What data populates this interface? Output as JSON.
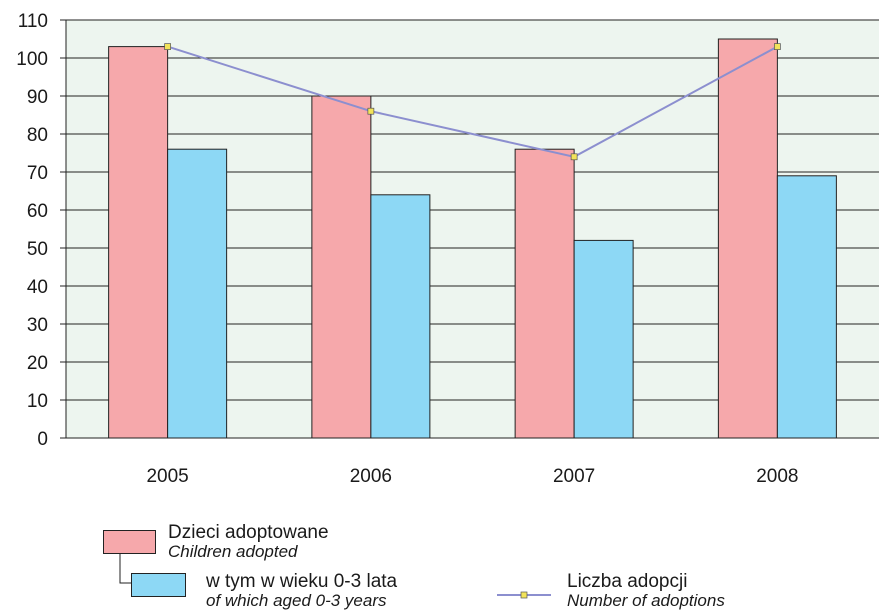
{
  "chart_data": {
    "type": "bar",
    "categories": [
      "2005",
      "2006",
      "2007",
      "2008"
    ],
    "ylim": [
      0,
      110
    ],
    "yticks": [
      0,
      10,
      20,
      30,
      40,
      50,
      60,
      70,
      80,
      90,
      100,
      110
    ],
    "grid": true,
    "legend_position": "bottom",
    "series": [
      {
        "name": "Dzieci adoptowane",
        "name_en": "Children adopted",
        "kind": "bar",
        "color": "#f6a8ab",
        "values": [
          103,
          90,
          76,
          105
        ]
      },
      {
        "name": "w tym w wieku 0-3 lata",
        "name_en": "of which aged 0-3 years",
        "kind": "bar",
        "color": "#8dd8f5",
        "values": [
          76,
          64,
          52,
          69
        ]
      },
      {
        "name": "Liczba adopcji",
        "name_en": "Number of adoptions",
        "kind": "line",
        "color": "#8c8fcf",
        "marker_color": "#f2e35a",
        "values": [
          103,
          86,
          74,
          103
        ]
      }
    ],
    "plot_background": "#edf5ef"
  }
}
